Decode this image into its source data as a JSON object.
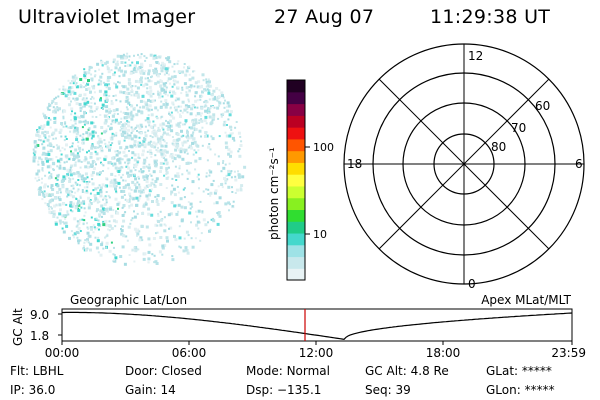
{
  "header": {
    "title": "Ultraviolet Imager",
    "date": "27 Aug 07",
    "time": "11:29:38 UT"
  },
  "colorbar": {
    "unit_label": "photon cm⁻²s⁻¹",
    "ticks": [
      "100",
      "10"
    ],
    "colors": [
      "#e8f3f5",
      "#c8e8ec",
      "#9ee2e6",
      "#44d8cc",
      "#20cc88",
      "#30dd30",
      "#88f020",
      "#ccff30",
      "#ffff40",
      "#ffdd00",
      "#ff9900",
      "#ff5500",
      "#ee1111",
      "#bb0022",
      "#880044",
      "#440044",
      "#200022"
    ]
  },
  "polar": {
    "lat_labels": [
      "80",
      "70",
      "60"
    ],
    "mlt_labels": {
      "top": "12",
      "bottom": "0",
      "left": "18",
      "right": "6"
    }
  },
  "timeline": {
    "ylabel": "GC Alt",
    "yticks": [
      "9.0",
      "1.8"
    ],
    "left_caption": "Geographic Lat/Lon",
    "right_caption": "Apex MLat/MLT",
    "xticks": [
      "00:00",
      "06:00",
      "12:00",
      "18:00",
      "23:59"
    ],
    "cursor_color": "#cc0000"
  },
  "info": {
    "row1": [
      {
        "label": "Flt:",
        "value": "LBHL"
      },
      {
        "label": "Door:",
        "value": "Closed"
      },
      {
        "label": "Mode:",
        "value": "Normal"
      },
      {
        "label": "GC Alt:",
        "value": "4.8 Re"
      },
      {
        "label": "GLat:",
        "value": "*****"
      }
    ],
    "row2": [
      {
        "label": "IP:",
        "value": "36.0"
      },
      {
        "label": "Gain:",
        "value": "14"
      },
      {
        "label": "Dsp:",
        "value": "−135.1"
      },
      {
        "label": "Seq:",
        "value": "39"
      },
      {
        "label": "GLon:",
        "value": "*****"
      }
    ]
  }
}
